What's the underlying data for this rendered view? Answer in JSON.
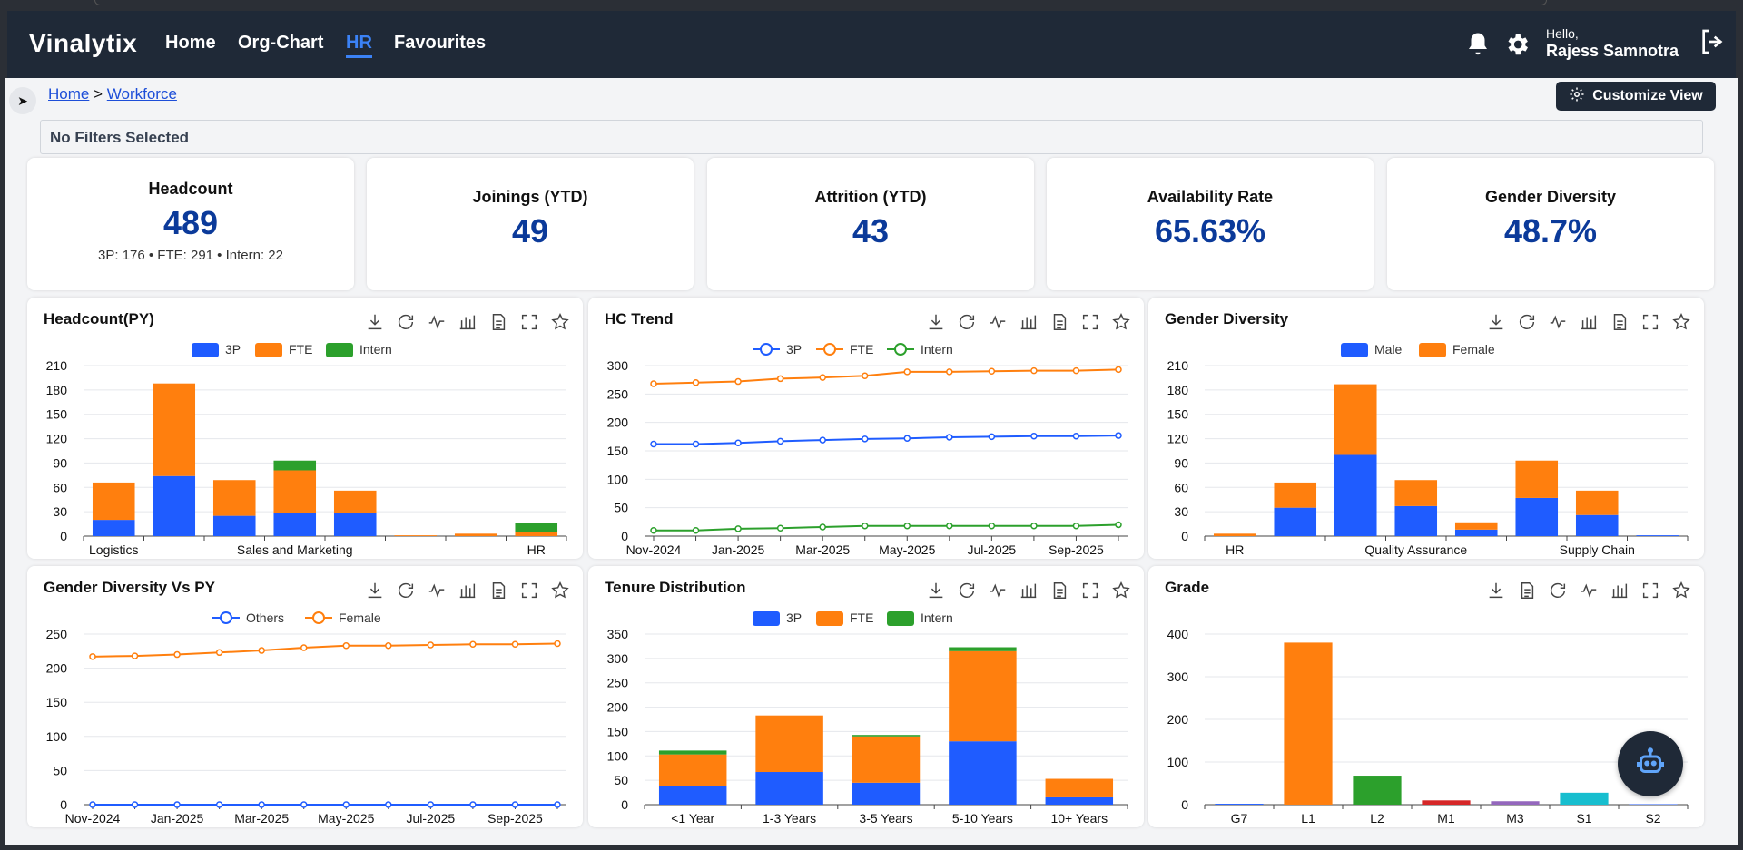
{
  "nav": {
    "logo": "Vinalytix",
    "items": [
      "Home",
      "Org-Chart",
      "HR",
      "Favourites"
    ],
    "active": "HR",
    "greeting": "Hello,",
    "user": "Rajess Samnotra"
  },
  "breadcrumb": {
    "home": "Home",
    "sep": ">",
    "current": "Workforce"
  },
  "customize_label": "Customize View",
  "filters_text": "No Filters Selected",
  "kpis": [
    {
      "title": "Headcount",
      "value": "489",
      "sub": "3P: 176 • FTE: 291 • Intern: 22"
    },
    {
      "title": "Joinings (YTD)",
      "value": "49"
    },
    {
      "title": "Attrition (YTD)",
      "value": "43"
    },
    {
      "title": "Availability Rate",
      "value": "65.63%"
    },
    {
      "title": "Gender Diversity",
      "value": "48.7%"
    }
  ],
  "colors": {
    "blue": "#1f5cff",
    "orange": "#ff7f0e",
    "green": "#2ca02c",
    "navy": "#1f2937",
    "kpi": "#0b3a9a"
  },
  "chart_data": [
    {
      "type": "bar",
      "title": "Headcount(PY)",
      "stacked": true,
      "categories": [
        "Logistics",
        "",
        "",
        "Sales and Marketing",
        "",
        "",
        "",
        "HR"
      ],
      "tick_labels": [
        "Logistics",
        "Sales and Marketing",
        "HR"
      ],
      "series": [
        {
          "name": "3P",
          "values": [
            20,
            74,
            25,
            28,
            28,
            0,
            0,
            0
          ]
        },
        {
          "name": "FTE",
          "values": [
            46,
            114,
            44,
            53,
            28,
            1,
            3,
            5
          ]
        },
        {
          "name": "Intern",
          "values": [
            0,
            0,
            0,
            12,
            0,
            0,
            0,
            11
          ]
        }
      ],
      "ylim": [
        0,
        210
      ],
      "yticks": [
        0,
        30,
        60,
        90,
        120,
        150,
        180,
        210
      ]
    },
    {
      "type": "line",
      "title": "HC Trend",
      "x": [
        "Nov-2024",
        "Dec-2024",
        "Jan-2025",
        "Feb-2025",
        "Mar-2025",
        "Apr-2025",
        "May-2025",
        "Jun-2025",
        "Jul-2025",
        "Aug-2025",
        "Sep-2025",
        "Oct-2025"
      ],
      "tick_labels": [
        "Nov-2024",
        "Jan-2025",
        "Mar-2025",
        "May-2025",
        "Jul-2025",
        "Sep-2025"
      ],
      "series": [
        {
          "name": "3P",
          "values": [
            162,
            162,
            164,
            167,
            169,
            171,
            172,
            174,
            175,
            176,
            176,
            177
          ]
        },
        {
          "name": "FTE",
          "values": [
            268,
            270,
            272,
            277,
            279,
            282,
            289,
            289,
            290,
            291,
            291,
            293
          ]
        },
        {
          "name": "Intern",
          "values": [
            10,
            10,
            13,
            14,
            16,
            18,
            18,
            18,
            18,
            18,
            18,
            20
          ]
        }
      ],
      "ylim": [
        0,
        300
      ],
      "yticks": [
        0,
        50,
        100,
        150,
        200,
        250,
        300
      ]
    },
    {
      "type": "bar",
      "title": "Gender Diversity",
      "stacked": true,
      "categories": [
        "HR",
        "",
        "",
        "Quality Assurance",
        "",
        "",
        "Supply Chain",
        ""
      ],
      "tick_labels": [
        "HR",
        "Quality Assurance",
        "Supply Chain"
      ],
      "series": [
        {
          "name": "Male",
          "values": [
            0,
            35,
            100,
            37,
            8,
            47,
            26,
            1
          ]
        },
        {
          "name": "Female",
          "values": [
            3,
            31,
            87,
            32,
            9,
            46,
            30,
            0
          ]
        }
      ],
      "ylim": [
        0,
        210
      ],
      "yticks": [
        0,
        30,
        60,
        90,
        120,
        150,
        180,
        210
      ]
    },
    {
      "type": "line",
      "title": "Gender Diversity Vs PY",
      "x": [
        "Nov-2024",
        "Dec-2024",
        "Jan-2025",
        "Feb-2025",
        "Mar-2025",
        "Apr-2025",
        "May-2025",
        "Jun-2025",
        "Jul-2025",
        "Aug-2025",
        "Sep-2025",
        "Oct-2025"
      ],
      "tick_labels": [
        "Nov-2024",
        "Jan-2025",
        "Mar-2025",
        "May-2025",
        "Jul-2025",
        "Sep-2025"
      ],
      "series": [
        {
          "name": "Others",
          "values": [
            0,
            0,
            0,
            0,
            0,
            0,
            0,
            0,
            0,
            0,
            0,
            0
          ]
        },
        {
          "name": "Female",
          "values": [
            217,
            218,
            220,
            223,
            226,
            230,
            233,
            233,
            234,
            235,
            235,
            236
          ]
        }
      ],
      "ylim": [
        0,
        250
      ],
      "yticks": [
        0,
        50,
        100,
        150,
        200,
        250
      ]
    },
    {
      "type": "bar",
      "title": "Tenure Distribution",
      "stacked": true,
      "categories": [
        "<1 Year",
        "1-3 Years",
        "3-5 Years",
        "5-10 Years",
        "10+ Years"
      ],
      "tick_labels": [
        "<1 Year",
        "1-3 Years",
        "3-5 Years",
        "5-10 Years",
        "10+ Years"
      ],
      "series": [
        {
          "name": "3P",
          "values": [
            38,
            67,
            45,
            130,
            15
          ]
        },
        {
          "name": "FTE",
          "values": [
            65,
            116,
            95,
            185,
            38
          ]
        },
        {
          "name": "Intern",
          "values": [
            8,
            0,
            3,
            8,
            0
          ]
        }
      ],
      "ylim": [
        0,
        350
      ],
      "yticks": [
        0,
        50,
        100,
        150,
        200,
        250,
        300,
        350
      ]
    },
    {
      "type": "bar",
      "title": "Grade",
      "stacked": false,
      "categories": [
        "G7",
        "L1",
        "L2",
        "M1",
        "M3",
        "S1",
        "S2"
      ],
      "tick_labels": [
        "G7",
        "L1",
        "L2",
        "M1",
        "M3",
        "S1",
        "S2"
      ],
      "values": [
        2,
        380,
        68,
        10,
        8,
        28,
        1
      ],
      "bar_colors": [
        "#1f5cff",
        "#ff7f0e",
        "#2ca02c",
        "#d62728",
        "#9467bd",
        "#17becf",
        "#1f5cff"
      ],
      "ylim": [
        0,
        400
      ],
      "yticks": [
        0,
        100,
        200,
        300,
        400
      ]
    }
  ]
}
